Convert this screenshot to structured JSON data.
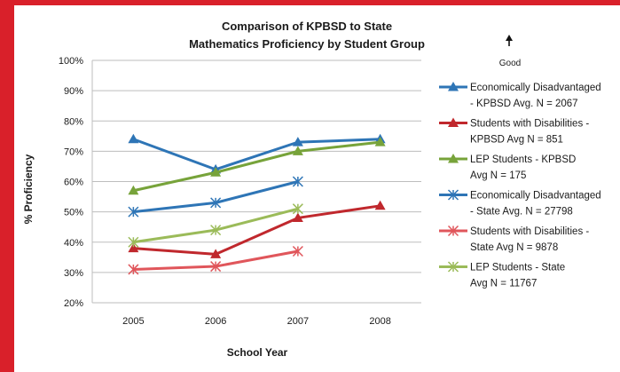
{
  "chart_data": {
    "type": "line",
    "title_lines": [
      "Comparison of KPBSD to State",
      "Mathematics Proficiency by Student Group"
    ],
    "xlabel": "School Year",
    "ylabel": "% Proficiency",
    "categories": [
      "2005",
      "2006",
      "2007",
      "2008"
    ],
    "y_ticks": [
      "20%",
      "30%",
      "40%",
      "50%",
      "60%",
      "70%",
      "80%",
      "90%",
      "100%"
    ],
    "ylim": [
      20,
      100
    ],
    "grid": true,
    "legend_placement": "right",
    "annotation": {
      "arrow_icon": "up-arrow-icon",
      "label": "Good"
    },
    "series": [
      {
        "name_lines": [
          "Economically Disadvantaged",
          "- KPBSD Avg. N = 2067"
        ],
        "values": [
          74,
          64,
          73,
          74
        ],
        "color": "#2e75b6",
        "marker": "triangle"
      },
      {
        "name_lines": [
          "Students with Disabilities -",
          "KPBSD Avg N = 851"
        ],
        "values": [
          38,
          36,
          48,
          52
        ],
        "color": "#c0282d",
        "marker": "triangle"
      },
      {
        "name_lines": [
          "LEP Students - KPBSD",
          "Avg N = 175"
        ],
        "values": [
          57,
          63,
          70,
          73
        ],
        "color": "#77a33a",
        "marker": "triangle"
      },
      {
        "name_lines": [
          "Economically Disadvantaged",
          "- State Avg. N = 27798"
        ],
        "values": [
          50,
          53,
          60,
          null
        ],
        "color": "#2e75b6",
        "marker": "asterisk"
      },
      {
        "name_lines": [
          "Students with Disabilities -",
          "State Avg N = 9878"
        ],
        "values": [
          31,
          32,
          37,
          null
        ],
        "color": "#e0565b",
        "marker": "asterisk"
      },
      {
        "name_lines": [
          "LEP Students - State",
          "Avg N = 11767"
        ],
        "values": [
          40,
          44,
          51,
          null
        ],
        "color": "#9bbb59",
        "marker": "asterisk"
      }
    ]
  }
}
